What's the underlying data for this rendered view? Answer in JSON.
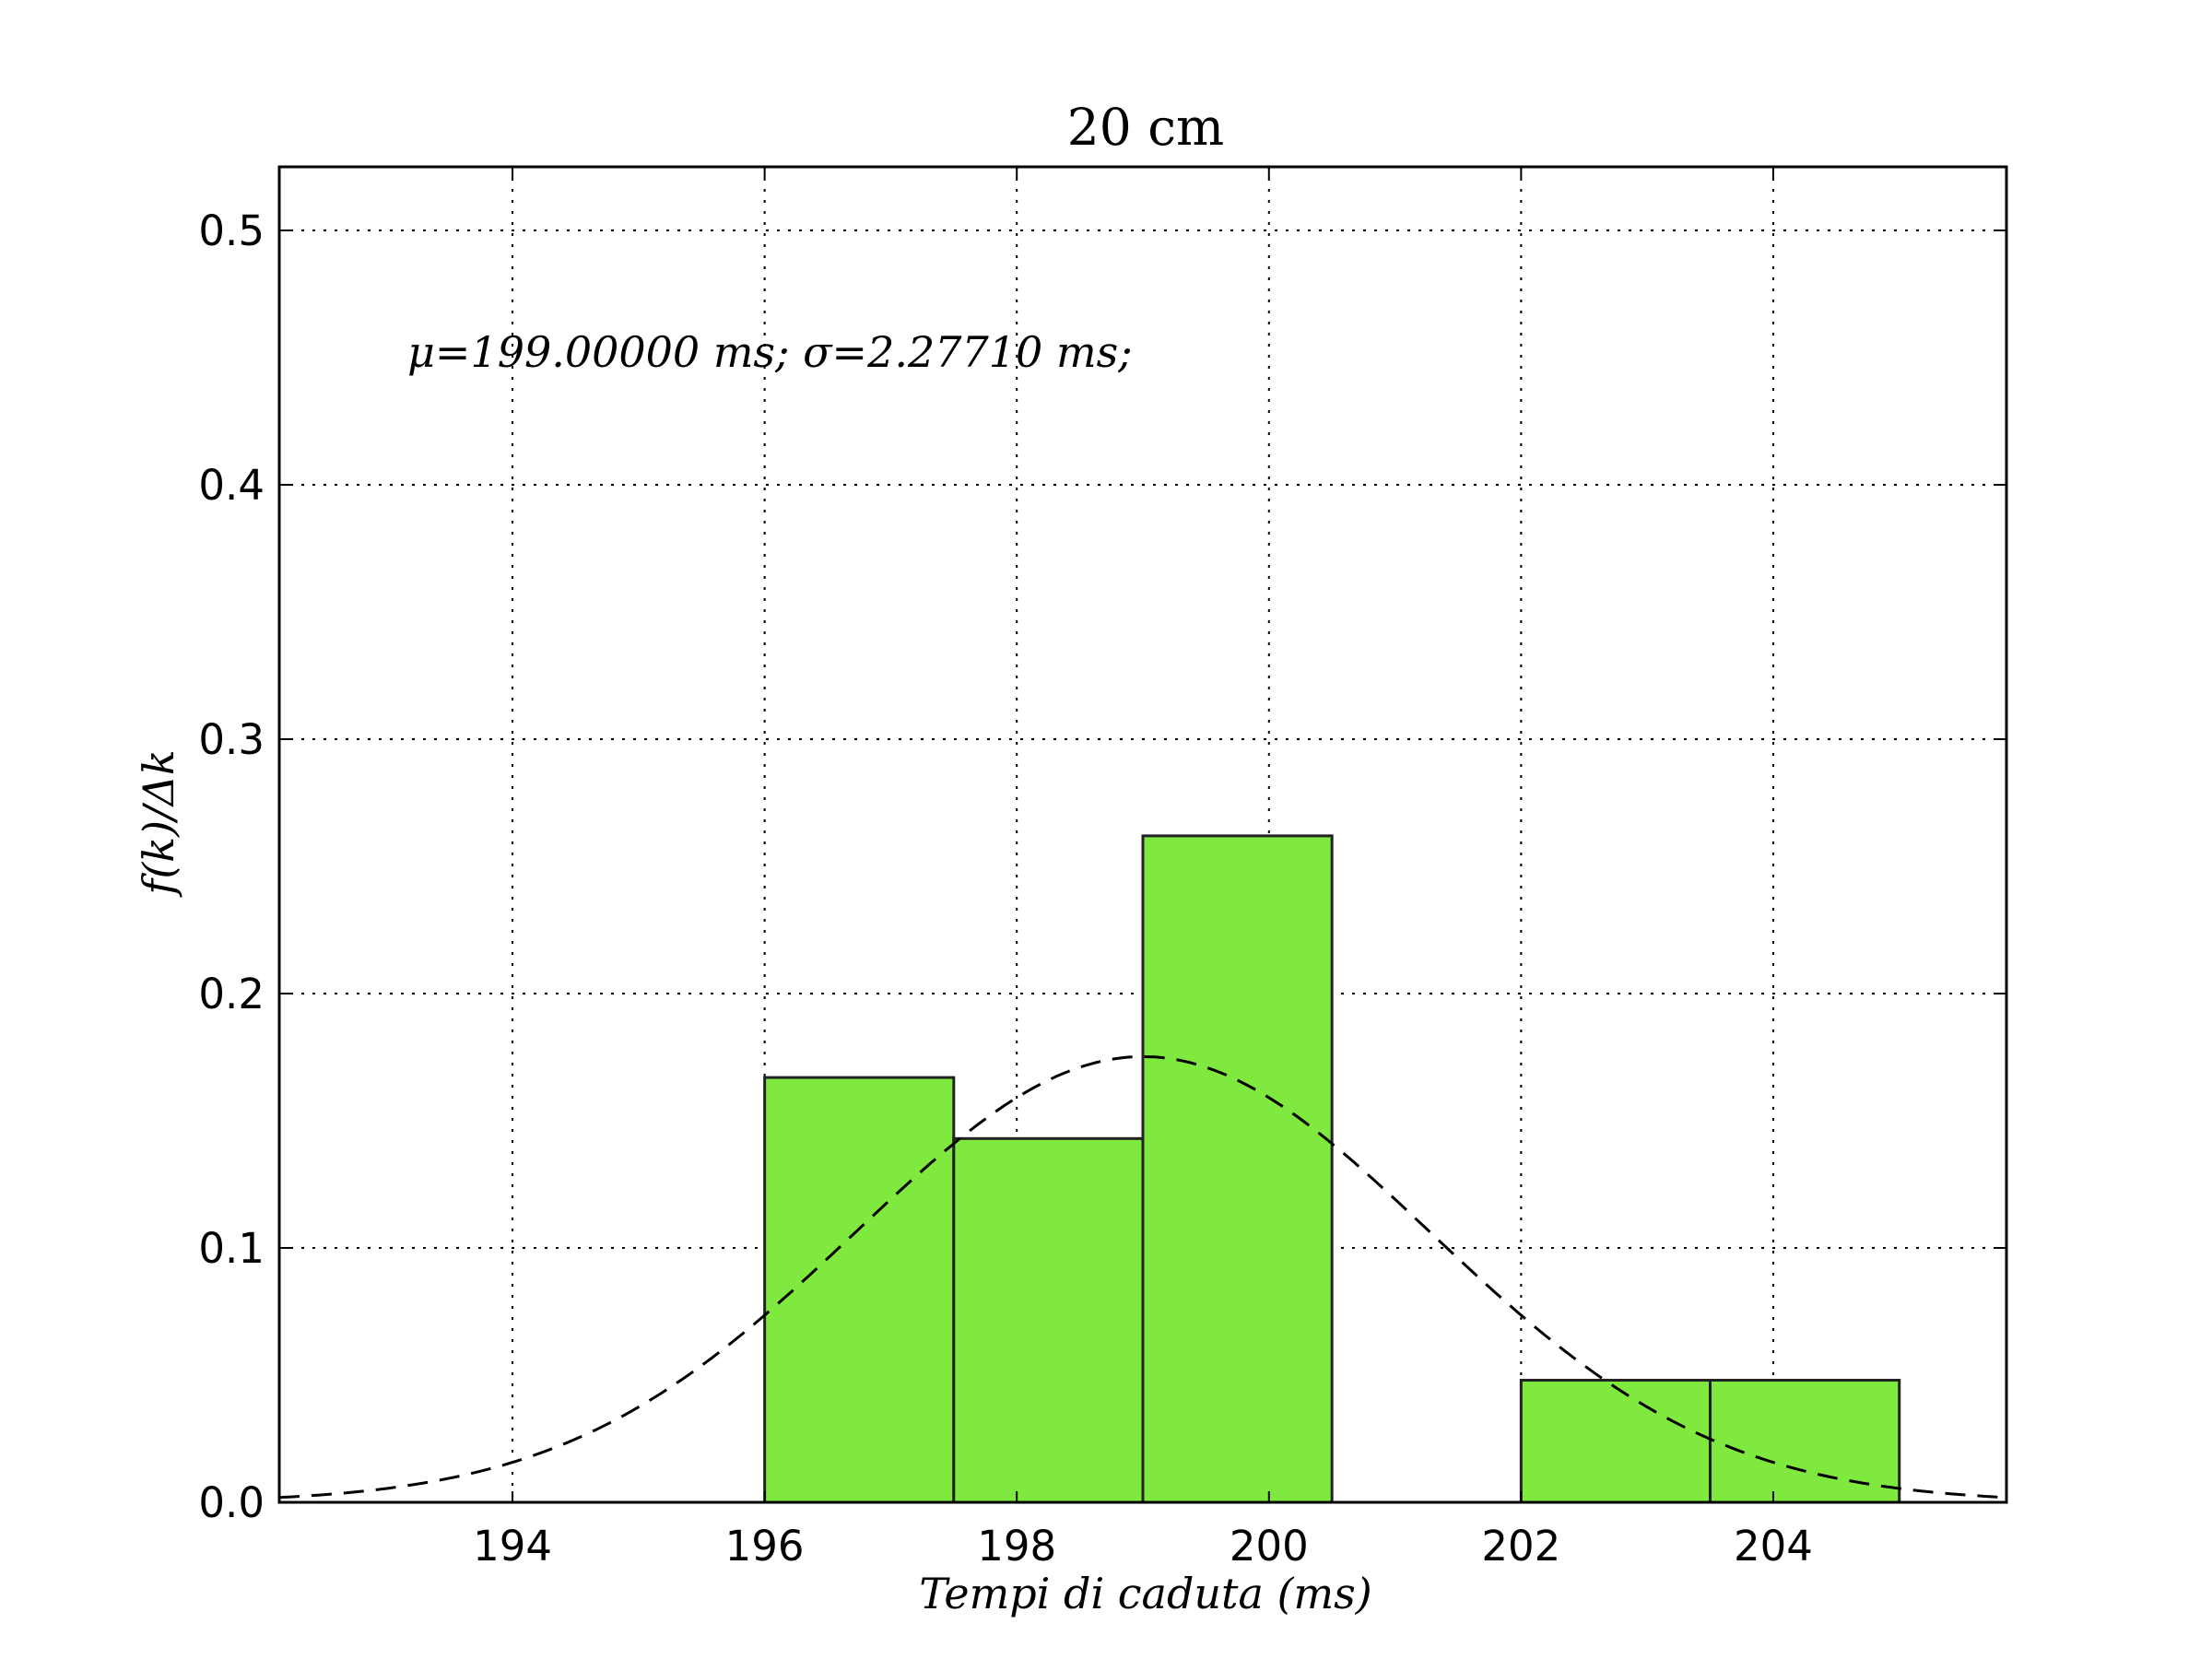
{
  "chart_data": {
    "type": "bar",
    "title": "20 cm",
    "xlabel": "Tempi di caduta (ms)",
    "ylabel": "f(k)/Δk",
    "annotation": "μ=199.00000 ms; σ=2.27710 ms;",
    "xlim": [
      192.15,
      205.85
    ],
    "ylim": [
      0.0,
      0.525
    ],
    "grid": true,
    "xticks": [
      194,
      196,
      198,
      200,
      202,
      204
    ],
    "xtick_labels": [
      "194",
      "196",
      "198",
      "200",
      "202",
      "204"
    ],
    "yticks": [
      0.0,
      0.1,
      0.2,
      0.3,
      0.4,
      0.5
    ],
    "ytick_labels": [
      "0.0",
      "0.1",
      "0.2",
      "0.3",
      "0.4",
      "0.5"
    ],
    "bins": [
      {
        "x0": 196.0,
        "x1": 197.5,
        "value": 0.167
      },
      {
        "x0": 197.5,
        "x1": 199.0,
        "value": 0.143
      },
      {
        "x0": 199.0,
        "x1": 200.5,
        "value": 0.262
      },
      {
        "x0": 202.0,
        "x1": 203.5,
        "value": 0.048
      },
      {
        "x0": 203.5,
        "x1": 205.0,
        "value": 0.048
      }
    ],
    "fit_curve": {
      "type": "gaussian",
      "mu": 199.0,
      "sigma": 2.2771,
      "style": "dashed"
    },
    "colors": {
      "bar_fill": "#7fe93f",
      "bar_edge": "#222222",
      "curve": "#000000",
      "grid": "#000000"
    }
  }
}
